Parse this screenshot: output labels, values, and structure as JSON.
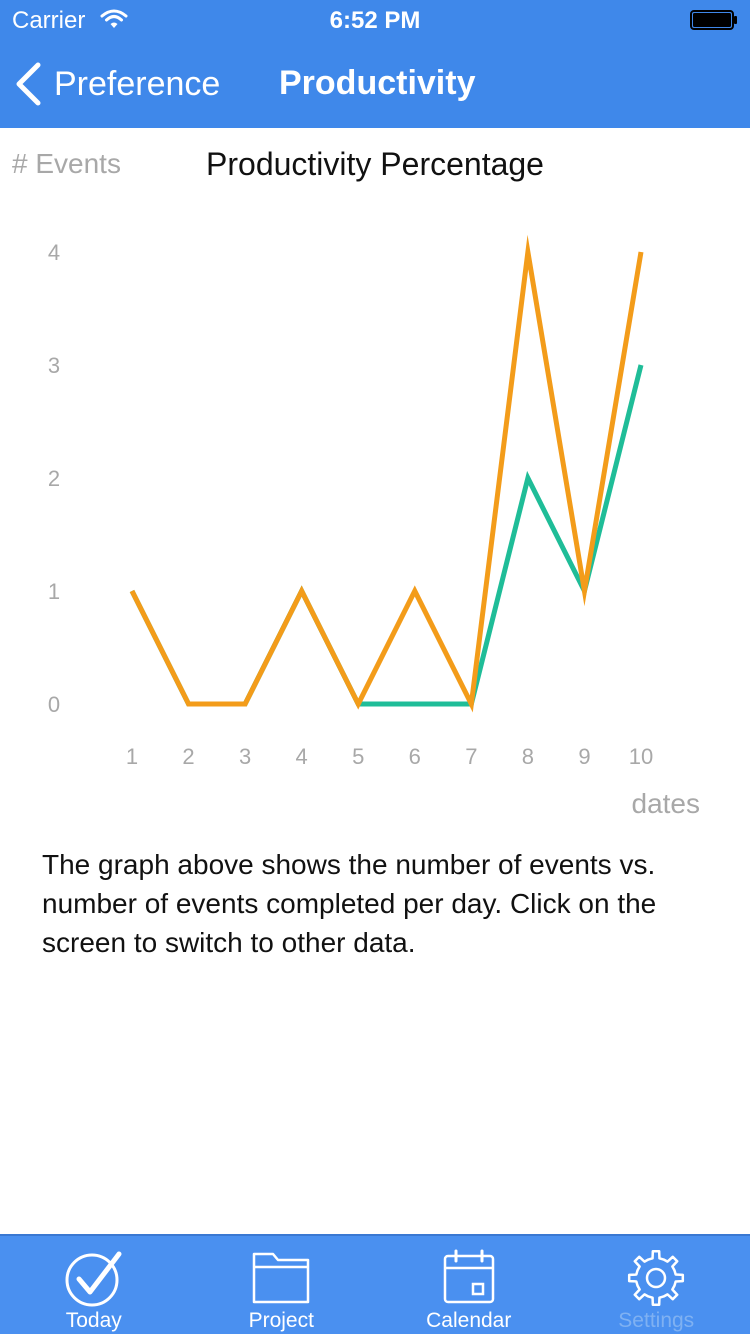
{
  "status_bar": {
    "carrier": "Carrier",
    "time": "6:52 PM"
  },
  "nav": {
    "back_label": "Preference",
    "title": "Productivity"
  },
  "chart_data": {
    "type": "line",
    "title": "Productivity Percentage",
    "ylabel": "# Events",
    "xlabel": "dates",
    "x": [
      1,
      2,
      3,
      4,
      5,
      6,
      7,
      8,
      9,
      10
    ],
    "y_ticks": [
      0,
      1,
      2,
      3,
      4
    ],
    "ylim": [
      0,
      4
    ],
    "xlim": [
      1,
      10
    ],
    "grid": false,
    "series": [
      {
        "color": "#1fbd98",
        "values": [
          1,
          0,
          0,
          1,
          0,
          0,
          0,
          2,
          1,
          3
        ]
      },
      {
        "color": "#f39c1a",
        "values": [
          1,
          0,
          0,
          1,
          0,
          1,
          0,
          4,
          1,
          4
        ]
      }
    ]
  },
  "description": "The graph above shows the number of events vs. number of events completed per day. Click on the screen to switch to other data.",
  "tabs": [
    {
      "label": "Today",
      "icon": "checkmark-circle-icon",
      "active": true
    },
    {
      "label": "Project",
      "icon": "folder-icon",
      "active": true
    },
    {
      "label": "Calendar",
      "icon": "calendar-icon",
      "active": true
    },
    {
      "label": "Settings",
      "icon": "gear-icon",
      "active": false
    }
  ]
}
